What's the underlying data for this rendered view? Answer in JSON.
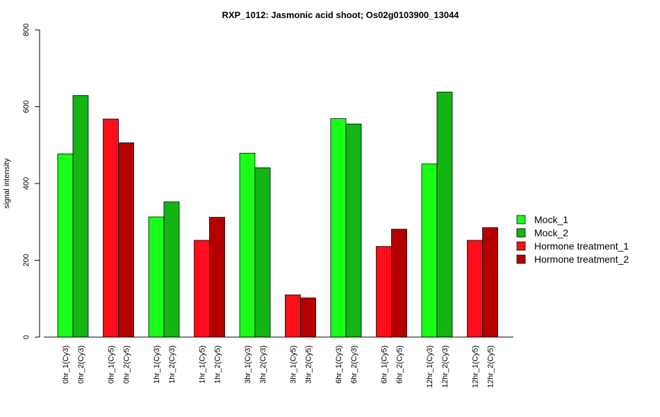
{
  "chart_data": {
    "type": "bar",
    "title": "RXP_1012: Jasmonic acid shoot; Os02g0103900_13044",
    "ylabel": "signal intensity",
    "ylim": [
      0,
      800
    ],
    "yticks": [
      0,
      200,
      400,
      600,
      800
    ],
    "grid": false,
    "legend_position": "right",
    "groups": [
      {
        "bars": [
          {
            "label": "0hr_1(Cy3)",
            "value": 477,
            "series": 0
          },
          {
            "label": "0hr_2(Cy3)",
            "value": 629,
            "series": 1
          }
        ]
      },
      {
        "bars": [
          {
            "label": "0hr_1(Cy5)",
            "value": 568,
            "series": 2
          },
          {
            "label": "0hr_2(Cy5)",
            "value": 506,
            "series": 3
          }
        ]
      },
      {
        "bars": [
          {
            "label": "1hr_1(Cy3)",
            "value": 313,
            "series": 0
          },
          {
            "label": "1hr_2(Cy3)",
            "value": 352,
            "series": 1
          }
        ]
      },
      {
        "bars": [
          {
            "label": "1hr_1(Cy5)",
            "value": 252,
            "series": 2
          },
          {
            "label": "1hr_2(Cy5)",
            "value": 312,
            "series": 3
          }
        ]
      },
      {
        "bars": [
          {
            "label": "3hr_1(Cy3)",
            "value": 479,
            "series": 0
          },
          {
            "label": "3hr_2(Cy3)",
            "value": 441,
            "series": 1
          }
        ]
      },
      {
        "bars": [
          {
            "label": "3hr_1(Cy5)",
            "value": 110,
            "series": 2
          },
          {
            "label": "3hr_2(Cy5)",
            "value": 102,
            "series": 3
          }
        ]
      },
      {
        "bars": [
          {
            "label": "6hr_1(Cy3)",
            "value": 569,
            "series": 0
          },
          {
            "label": "6hr_2(Cy3)",
            "value": 555,
            "series": 1
          }
        ]
      },
      {
        "bars": [
          {
            "label": "6hr_1(Cy5)",
            "value": 236,
            "series": 2
          },
          {
            "label": "6hr_2(Cy5)",
            "value": 281,
            "series": 3
          }
        ]
      },
      {
        "bars": [
          {
            "label": "12hr_1(Cy3)",
            "value": 451,
            "series": 0
          },
          {
            "label": "12hr_2(Cy3)",
            "value": 638,
            "series": 1
          }
        ]
      },
      {
        "bars": [
          {
            "label": "12hr_1(Cy5)",
            "value": 252,
            "series": 2
          },
          {
            "label": "12hr_2(Cy5)",
            "value": 285,
            "series": 3
          }
        ]
      }
    ],
    "series": [
      {
        "name": "Mock_1",
        "color": "#1aff1a"
      },
      {
        "name": "Mock_2",
        "color": "#13b413"
      },
      {
        "name": "Hormone treatment_1",
        "color": "#ff0d1a"
      },
      {
        "name": "Hormone treatment_2",
        "color": "#b40000"
      }
    ]
  }
}
